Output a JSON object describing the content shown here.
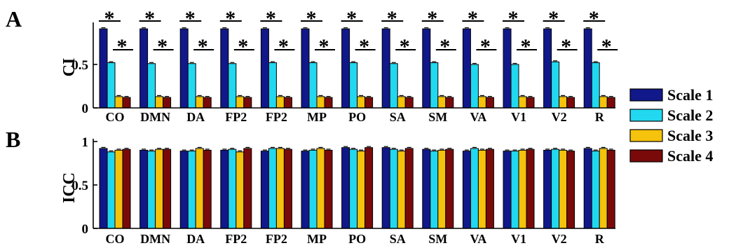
{
  "chart_data": [
    {
      "type": "bar",
      "panel_label": "A",
      "ylabel": "CI",
      "ylim": [
        0,
        1
      ],
      "yticks": [
        "0",
        "0.5"
      ],
      "yticks_values": [
        0,
        0.5
      ],
      "categories": [
        "CO",
        "DMN",
        "DA",
        "FP2",
        "FP2",
        "MP",
        "PO",
        "SA",
        "SM",
        "VA",
        "V1",
        "V2",
        "R"
      ],
      "series": [
        {
          "name": "Scale 1",
          "color": "#10188a",
          "values": [
            0.91,
            0.91,
            0.91,
            0.91,
            0.91,
            0.91,
            0.91,
            0.91,
            0.91,
            0.91,
            0.91,
            0.91,
            0.91
          ]
        },
        {
          "name": "Scale 2",
          "color": "#21d8f0",
          "values": [
            0.52,
            0.51,
            0.51,
            0.51,
            0.52,
            0.52,
            0.52,
            0.51,
            0.52,
            0.5,
            0.5,
            0.53,
            0.52
          ]
        },
        {
          "name": "Scale 3",
          "color": "#f5c20c",
          "values": [
            0.13,
            0.13,
            0.13,
            0.13,
            0.13,
            0.13,
            0.13,
            0.13,
            0.13,
            0.13,
            0.13,
            0.13,
            0.13
          ]
        },
        {
          "name": "Scale 4",
          "color": "#7a0a0a",
          "values": [
            0.12,
            0.12,
            0.12,
            0.12,
            0.12,
            0.12,
            0.12,
            0.12,
            0.12,
            0.12,
            0.12,
            0.12,
            0.12
          ]
        }
      ],
      "significance": {
        "marker": "*",
        "comparisons": [
          "Scale 1 vs Scale 2",
          "Scale 2 vs Scale 3/4"
        ]
      },
      "grid": false
    },
    {
      "type": "bar",
      "panel_label": "B",
      "ylabel": "ICC",
      "ylim": [
        0,
        1
      ],
      "yticks": [
        "0",
        "0.5",
        "1"
      ],
      "yticks_values": [
        0,
        0.5,
        1
      ],
      "categories": [
        "CO",
        "DMN",
        "DA",
        "FP2",
        "FP2",
        "MP",
        "PO",
        "SA",
        "SM",
        "VA",
        "V1",
        "V2",
        "R"
      ],
      "series": [
        {
          "name": "Scale 1",
          "color": "#10188a",
          "values": [
            0.92,
            0.9,
            0.89,
            0.9,
            0.89,
            0.89,
            0.93,
            0.93,
            0.91,
            0.89,
            0.89,
            0.9,
            0.92
          ]
        },
        {
          "name": "Scale 2",
          "color": "#21d8f0",
          "values": [
            0.88,
            0.89,
            0.89,
            0.91,
            0.92,
            0.9,
            0.91,
            0.91,
            0.89,
            0.92,
            0.89,
            0.91,
            0.89
          ]
        },
        {
          "name": "Scale 3",
          "color": "#f5c20c",
          "values": [
            0.9,
            0.91,
            0.92,
            0.88,
            0.92,
            0.92,
            0.89,
            0.89,
            0.9,
            0.9,
            0.9,
            0.9,
            0.92
          ]
        },
        {
          "name": "Scale 4",
          "color": "#7a0a0a",
          "values": [
            0.91,
            0.91,
            0.9,
            0.92,
            0.91,
            0.9,
            0.93,
            0.92,
            0.91,
            0.91,
            0.91,
            0.89,
            0.9
          ]
        }
      ],
      "grid": false
    }
  ],
  "legend": {
    "placement": "right",
    "entries": [
      {
        "label": "Scale 1",
        "color": "#10188a"
      },
      {
        "label": "Scale 2",
        "color": "#21d8f0"
      },
      {
        "label": "Scale 3",
        "color": "#f5c20c"
      },
      {
        "label": "Scale 4",
        "color": "#7a0a0a"
      }
    ]
  }
}
